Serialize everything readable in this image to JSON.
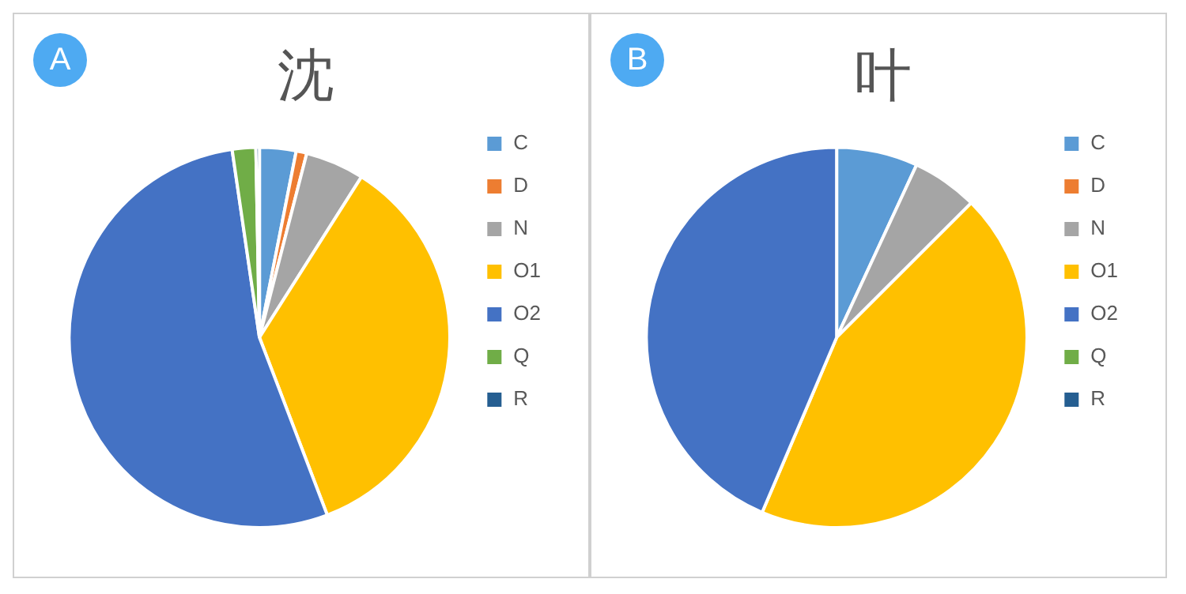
{
  "chart_data": [
    {
      "type": "pie",
      "title": "沈",
      "annotations": [
        "A"
      ],
      "categories": [
        "C",
        "D",
        "N",
        "O1",
        "O2",
        "Q",
        "R"
      ],
      "values": [
        3.1,
        0.9,
        5,
        35.2,
        53.5,
        2,
        0.3
      ],
      "colors": [
        "#5b9bd5",
        "#ed7d31",
        "#a5a5a5",
        "#ffc000",
        "#4472c4",
        "#70ad47",
        "#255e91"
      ],
      "legend": "right"
    },
    {
      "type": "pie",
      "title": "叶",
      "annotations": [
        "B"
      ],
      "categories": [
        "C",
        "D",
        "N",
        "O1",
        "O2",
        "Q",
        "R"
      ],
      "values": [
        6.9,
        0,
        5.6,
        43.9,
        43.6,
        0,
        0
      ],
      "colors": [
        "#5b9bd5",
        "#ed7d31",
        "#a5a5a5",
        "#ffc000",
        "#4472c4",
        "#70ad47",
        "#255e91"
      ],
      "legend": "right"
    }
  ]
}
